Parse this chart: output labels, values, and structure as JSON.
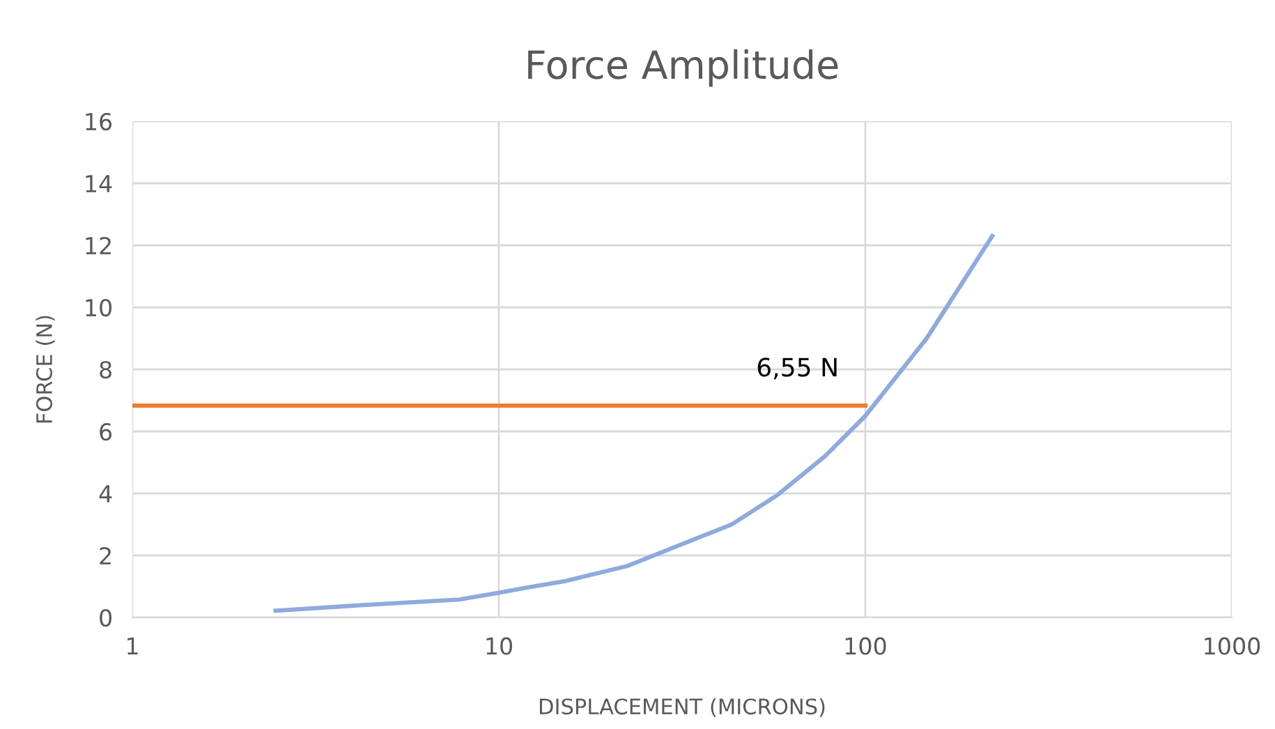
{
  "chart_data": {
    "type": "line",
    "title": "Force Amplitude",
    "xlabel": "DISPLACEMENT (MICRONS)",
    "ylabel": "FORCE (N)",
    "series": [
      {
        "color": "#8faadc",
        "x": [
          2.46,
          4.24,
          7.8,
          10,
          11.6,
          15.1,
          22.4,
          43.2,
          57.6,
          77.6,
          100,
          147,
          222
        ],
        "values": [
          0.22,
          0.4,
          0.58,
          0.8,
          0.94,
          1.17,
          1.66,
          3.0,
          3.95,
          5.2,
          6.5,
          9.0,
          12.3
        ]
      },
      {
        "color": "#ed7d31",
        "x": [
          1,
          100
        ],
        "values": [
          6.83,
          6.83
        ]
      }
    ],
    "annotations": [
      "6,55 N"
    ],
    "log": "x",
    "xlim": [
      1,
      1000
    ],
    "xticks": [
      1,
      10,
      100,
      1000
    ],
    "ylim": [
      0,
      16
    ],
    "yticks": [
      0,
      2,
      4,
      6,
      8,
      10,
      12,
      14,
      16
    ],
    "grid": true,
    "legend": false,
    "marker": "none",
    "line_style": "solid"
  }
}
